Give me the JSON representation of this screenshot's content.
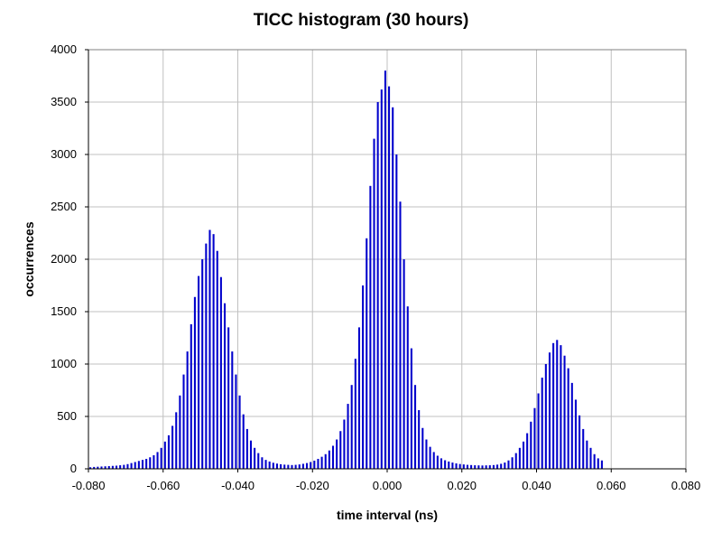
{
  "chart_data": {
    "type": "bar",
    "title": "TICC histogram (30 hours)",
    "xlabel": "time interval (ns)",
    "ylabel": "occurrences",
    "xlim": [
      -0.08,
      0.08
    ],
    "ylim": [
      0,
      4000
    ],
    "x_ticks": [
      "-0.080",
      "-0.060",
      "-0.040",
      "-0.020",
      "0.000",
      "0.020",
      "0.040",
      "0.060",
      "0.080"
    ],
    "y_ticks": [
      "0",
      "500",
      "1000",
      "1500",
      "2000",
      "2500",
      "3000",
      "3500",
      "4000"
    ],
    "grid": true,
    "legend": "none",
    "bar_color": "#0000CC",
    "bin_width": 0.001,
    "x_start": -0.08,
    "values": [
      15,
      18,
      20,
      22,
      24,
      26,
      28,
      30,
      34,
      38,
      45,
      55,
      65,
      75,
      85,
      95,
      110,
      130,
      160,
      200,
      260,
      320,
      410,
      540,
      700,
      900,
      1120,
      1380,
      1640,
      1840,
      2000,
      2150,
      2280,
      2240,
      2080,
      1830,
      1580,
      1350,
      1120,
      900,
      700,
      520,
      380,
      270,
      200,
      150,
      110,
      85,
      70,
      58,
      50,
      44,
      40,
      38,
      36,
      38,
      42,
      48,
      55,
      65,
      78,
      95,
      115,
      140,
      175,
      220,
      280,
      360,
      470,
      620,
      800,
      1050,
      1350,
      1750,
      2200,
      2700,
      3150,
      3500,
      3620,
      3800,
      3650,
      3450,
      3000,
      2550,
      2000,
      1550,
      1150,
      800,
      560,
      390,
      280,
      210,
      160,
      125,
      100,
      82,
      70,
      60,
      52,
      46,
      42,
      38,
      36,
      34,
      33,
      32,
      33,
      34,
      36,
      40,
      48,
      60,
      80,
      110,
      150,
      200,
      260,
      340,
      450,
      580,
      720,
      870,
      1000,
      1110,
      1200,
      1230,
      1180,
      1080,
      960,
      820,
      660,
      510,
      380,
      270,
      200,
      140,
      100,
      80
    ]
  }
}
